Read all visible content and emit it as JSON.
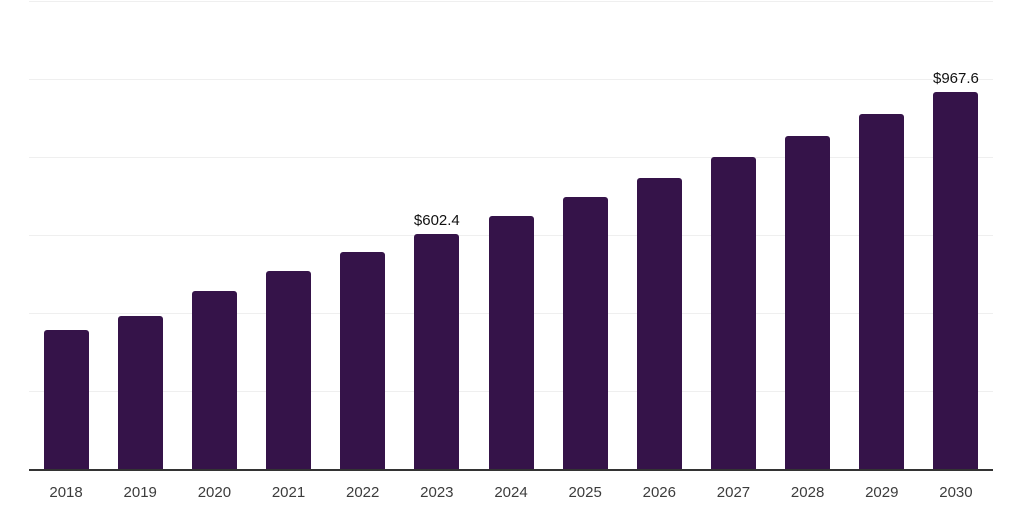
{
  "chart_data": {
    "type": "bar",
    "title": "",
    "xlabel": "",
    "ylabel": "",
    "categories": [
      "2018",
      "2019",
      "2020",
      "2021",
      "2022",
      "2023",
      "2024",
      "2025",
      "2026",
      "2027",
      "2028",
      "2029",
      "2030"
    ],
    "values": [
      357,
      393,
      457,
      508,
      557,
      602.4,
      649,
      698,
      747,
      801,
      855,
      911,
      967.6
    ],
    "bar_labels": [
      "",
      "",
      "",
      "",
      "",
      "$602.4",
      "",
      "",
      "",
      "",
      "",
      "",
      "$967.6"
    ],
    "ylim": [
      0,
      1200
    ],
    "grid_step": 200,
    "grid": true,
    "legend": false,
    "y_tick_labels_visible": false,
    "colors": {
      "bar": "#351349",
      "gridline": "#efefef",
      "axis_line": "#333333",
      "data_label": "#111111",
      "tick_label": "#3c3c3c",
      "background": "#ffffff"
    }
  }
}
